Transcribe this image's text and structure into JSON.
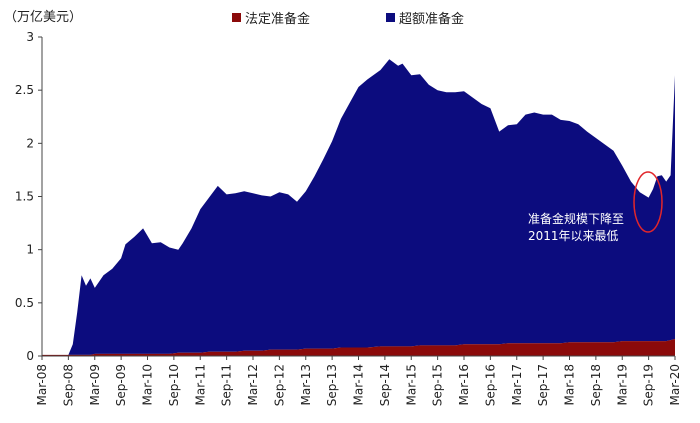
{
  "colors": {
    "required": "#8b0a0a",
    "excess": "#0c0c7e",
    "axis": "#444444",
    "annotation": "#e1262b"
  },
  "chart_data": {
    "type": "area",
    "stacked": true,
    "unit_label": "（万亿美元）",
    "ylim": [
      0,
      3
    ],
    "yticks": [
      "0",
      "0.5",
      "1",
      "1.5",
      "2",
      "2.5",
      "3"
    ],
    "x_ticks": [
      "Mar-08",
      "Sep-08",
      "Mar-09",
      "Sep-09",
      "Mar-10",
      "Sep-10",
      "Mar-11",
      "Sep-11",
      "Mar-12",
      "Sep-12",
      "Mar-13",
      "Sep-13",
      "Mar-14",
      "Sep-14",
      "Mar-15",
      "Sep-15",
      "Mar-16",
      "Sep-16",
      "Mar-17",
      "Sep-17",
      "Mar-18",
      "Sep-18",
      "Mar-19",
      "Sep-19",
      "Mar-20"
    ],
    "legend": {
      "position": "top",
      "entries": [
        "法定准备金",
        "超额准备金"
      ]
    },
    "annotation": {
      "lines": [
        "准备金规模下降至",
        "2011年以来最低"
      ]
    },
    "x": [
      "2008-03",
      "2008-06",
      "2008-09",
      "2008-10",
      "2008-11",
      "2008-12",
      "2009-01",
      "2009-02",
      "2009-03",
      "2009-05",
      "2009-07",
      "2009-09",
      "2009-10",
      "2009-12",
      "2010-02",
      "2010-04",
      "2010-06",
      "2010-08",
      "2010-10",
      "2010-11",
      "2011-01",
      "2011-03",
      "2011-05",
      "2011-07",
      "2011-09",
      "2011-11",
      "2012-01",
      "2012-03",
      "2012-05",
      "2012-07",
      "2012-09",
      "2012-11",
      "2013-01",
      "2013-03",
      "2013-05",
      "2013-07",
      "2013-09",
      "2013-11",
      "2014-01",
      "2014-03",
      "2014-05",
      "2014-08",
      "2014-10",
      "2014-12",
      "2015-01",
      "2015-03",
      "2015-05",
      "2015-07",
      "2015-09",
      "2015-11",
      "2016-01",
      "2016-03",
      "2016-05",
      "2016-07",
      "2016-09",
      "2016-11",
      "2017-01",
      "2017-03",
      "2017-05",
      "2017-07",
      "2017-09",
      "2017-11",
      "2018-01",
      "2018-03",
      "2018-05",
      "2018-07",
      "2018-09",
      "2018-11",
      "2019-01",
      "2019-03",
      "2019-05",
      "2019-07",
      "2019-09",
      "2019-10",
      "2019-11",
      "2019-12",
      "2020-01",
      "2020-02",
      "2020-03"
    ],
    "series": [
      {
        "name": "法定准备金",
        "values": [
          0.01,
          0.01,
          0.01,
          0.01,
          0.01,
          0.01,
          0.01,
          0.01,
          0.02,
          0.02,
          0.02,
          0.02,
          0.02,
          0.02,
          0.02,
          0.02,
          0.02,
          0.02,
          0.03,
          0.03,
          0.03,
          0.03,
          0.04,
          0.04,
          0.04,
          0.04,
          0.05,
          0.05,
          0.05,
          0.06,
          0.06,
          0.06,
          0.06,
          0.07,
          0.07,
          0.07,
          0.07,
          0.08,
          0.08,
          0.08,
          0.08,
          0.09,
          0.09,
          0.09,
          0.09,
          0.09,
          0.1,
          0.1,
          0.1,
          0.1,
          0.1,
          0.11,
          0.11,
          0.11,
          0.11,
          0.11,
          0.12,
          0.12,
          0.12,
          0.12,
          0.12,
          0.12,
          0.12,
          0.13,
          0.13,
          0.13,
          0.13,
          0.13,
          0.13,
          0.14,
          0.14,
          0.14,
          0.14,
          0.14,
          0.14,
          0.14,
          0.14,
          0.15,
          0.16
        ]
      },
      {
        "name": "超额准备金",
        "values": [
          0.0,
          0.0,
          0.0,
          0.1,
          0.4,
          0.75,
          0.65,
          0.72,
          0.62,
          0.74,
          0.8,
          0.9,
          1.03,
          1.1,
          1.18,
          1.04,
          1.05,
          1.0,
          0.97,
          1.03,
          1.17,
          1.35,
          1.45,
          1.56,
          1.48,
          1.49,
          1.5,
          1.48,
          1.46,
          1.44,
          1.48,
          1.46,
          1.39,
          1.48,
          1.62,
          1.78,
          1.95,
          2.15,
          2.3,
          2.45,
          2.52,
          2.6,
          2.7,
          2.64,
          2.66,
          2.55,
          2.55,
          2.45,
          2.4,
          2.38,
          2.38,
          2.38,
          2.32,
          2.26,
          2.22,
          2.0,
          2.05,
          2.06,
          2.15,
          2.17,
          2.15,
          2.15,
          2.1,
          2.08,
          2.05,
          1.98,
          1.92,
          1.86,
          1.8,
          1.65,
          1.5,
          1.4,
          1.35,
          1.43,
          1.55,
          1.56,
          1.5,
          1.55,
          2.48
        ]
      }
    ]
  }
}
